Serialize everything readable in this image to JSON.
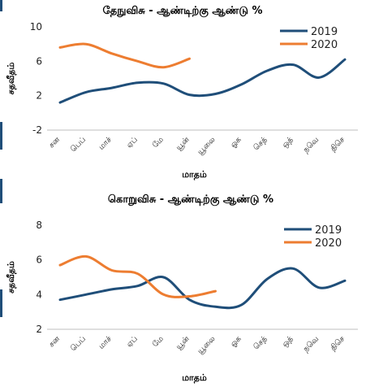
{
  "colors": {
    "s2019": "#1f4e79",
    "s2020": "#ed7d31",
    "axis": "#bfbfbf",
    "edge": "#1f4e79"
  },
  "chart_data": [
    {
      "type": "line",
      "title": "தேநுவிசு - ஆண்டிற்கு ஆண்டு %",
      "xlabel": "மாதம்",
      "ylabel": "சதவீதம்",
      "categories": [
        "சன",
        "பெப்",
        "மாச்",
        "ஏப்",
        "மே",
        "யூன்",
        "யூலை",
        "ஓக",
        "செத்",
        "ஒத்",
        "நவெ",
        "திசெ"
      ],
      "ylim": [
        -2,
        10
      ],
      "yticks": [
        "-2",
        "2",
        "6",
        "10"
      ],
      "grid": false,
      "legend": "top-right",
      "series": [
        {
          "name": "2019",
          "color": "#1f4e79",
          "values": [
            1.2,
            2.4,
            2.9,
            3.5,
            3.4,
            2.1,
            2.2,
            3.3,
            4.9,
            5.6,
            4.1,
            6.2
          ]
        },
        {
          "name": "2020",
          "color": "#ed7d31",
          "values": [
            7.6,
            8.0,
            6.9,
            6.0,
            5.3,
            6.3,
            null,
            null,
            null,
            null,
            null,
            null
          ]
        }
      ]
    },
    {
      "type": "line",
      "title": "கொறுவிசு - ஆண்டிற்கு ஆண்டு %",
      "xlabel": "மாதம்",
      "ylabel": "சதவீதம்",
      "categories": [
        "சன",
        "பெப்",
        "மாச்",
        "ஏப்",
        "மே",
        "யூன்",
        "யூலை",
        "ஓக",
        "செத்",
        "ஒத்",
        "நவெ",
        "திசெ"
      ],
      "ylim": [
        2,
        8
      ],
      "yticks": [
        "2",
        "4",
        "6",
        "8"
      ],
      "grid": false,
      "legend": "top-right",
      "series": [
        {
          "name": "2019",
          "color": "#1f4e79",
          "values": [
            3.7,
            4.0,
            4.3,
            4.5,
            5.0,
            3.7,
            3.3,
            3.4,
            4.9,
            5.5,
            4.4,
            4.8
          ]
        },
        {
          "name": "2020",
          "color": "#ed7d31",
          "values": [
            5.7,
            6.2,
            5.4,
            5.2,
            4.0,
            3.9,
            4.2,
            null,
            null,
            null,
            null,
            null
          ]
        }
      ]
    }
  ]
}
